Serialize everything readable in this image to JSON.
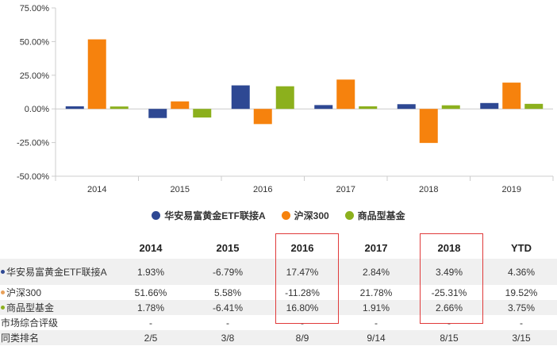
{
  "chart_data": {
    "type": "bar",
    "categories": [
      "2014",
      "2015",
      "2016",
      "2017",
      "2018",
      "2019"
    ],
    "series": [
      {
        "name": "华安易富黄金ETF联接A",
        "color": "#2e4893",
        "values": [
          1.93,
          -6.79,
          17.47,
          2.84,
          3.49,
          4.36
        ]
      },
      {
        "name": "沪深300",
        "color": "#f6820d",
        "values": [
          51.66,
          5.58,
          -11.28,
          21.78,
          -25.31,
          19.52
        ]
      },
      {
        "name": "商品型基金",
        "color": "#8cb01d",
        "values": [
          1.78,
          -6.41,
          16.8,
          1.91,
          2.66,
          3.75
        ]
      }
    ],
    "yticks": [
      "75.00%",
      "50.00%",
      "25.00%",
      "0.00%",
      "-25.00%",
      "-50.00%"
    ],
    "ytick_values": [
      75,
      50,
      25,
      0,
      -25,
      -50
    ],
    "ylim": [
      -50,
      75
    ],
    "legend_position": "bottom-center",
    "grid": false
  },
  "table": {
    "headers": [
      "",
      "2014",
      "2015",
      "2016",
      "2017",
      "2018",
      "YTD"
    ],
    "rows": [
      {
        "label": "华安易富黄金ETF联接A",
        "bullet_color": "#2e4893",
        "values": [
          "1.93%",
          "-6.79%",
          "17.47%",
          "2.84%",
          "3.49%",
          "4.36%"
        ]
      },
      {
        "label": "沪深300",
        "bullet_color": "#e8a05a",
        "values": [
          "51.66%",
          "5.58%",
          "-11.28%",
          "21.78%",
          "-25.31%",
          "19.52%"
        ]
      },
      {
        "label": "商品型基金",
        "bullet_color": "#8cb01d",
        "values": [
          "1.78%",
          "-6.41%",
          "16.80%",
          "1.91%",
          "2.66%",
          "3.75%"
        ]
      },
      {
        "label": "市场综合评级",
        "bullet_color": "",
        "values": [
          "-",
          "-",
          "-",
          "-",
          "-",
          "-"
        ]
      },
      {
        "label": "同类排名",
        "bullet_color": "",
        "values": [
          "2/5",
          "3/8",
          "8/9",
          "9/14",
          "8/15",
          "3/15"
        ]
      }
    ],
    "highlight_color": "#e03a3a",
    "highlighted_columns": [
      "2016",
      "2018"
    ]
  }
}
